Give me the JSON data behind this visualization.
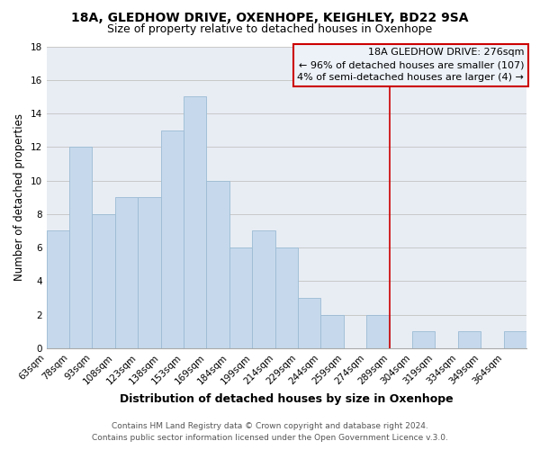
{
  "title": "18A, GLEDHOW DRIVE, OXENHOPE, KEIGHLEY, BD22 9SA",
  "subtitle": "Size of property relative to detached houses in Oxenhope",
  "xlabel": "Distribution of detached houses by size in Oxenhope",
  "ylabel": "Number of detached properties",
  "footer_line1": "Contains HM Land Registry data © Crown copyright and database right 2024.",
  "footer_line2": "Contains public sector information licensed under the Open Government Licence v.3.0.",
  "bin_labels": [
    "63sqm",
    "78sqm",
    "93sqm",
    "108sqm",
    "123sqm",
    "138sqm",
    "153sqm",
    "169sqm",
    "184sqm",
    "199sqm",
    "214sqm",
    "229sqm",
    "244sqm",
    "259sqm",
    "274sqm",
    "289sqm",
    "304sqm",
    "319sqm",
    "334sqm",
    "349sqm",
    "364sqm"
  ],
  "bar_values": [
    7,
    12,
    8,
    9,
    9,
    13,
    15,
    10,
    6,
    7,
    6,
    3,
    2,
    0,
    2,
    0,
    1,
    0,
    1,
    0,
    1
  ],
  "bar_color": "#c6d9ec",
  "bar_edge_color": "#9bbbd4",
  "grid_color": "#c8c8c8",
  "background_color": "#e8edf4",
  "ylim": [
    0,
    18
  ],
  "yticks": [
    0,
    2,
    4,
    6,
    8,
    10,
    12,
    14,
    16,
    18
  ],
  "property_label": "18A GLEDHOW DRIVE: 276sqm",
  "annotation_line1": "← 96% of detached houses are smaller (107)",
  "annotation_line2": "4% of semi-detached houses are larger (4) →",
  "vline_x": 14.5,
  "vline_color": "#cc0000",
  "legend_box_color": "#cc0000",
  "legend_bg": "#edf2f8",
  "title_fontsize": 10,
  "subtitle_fontsize": 9,
  "xlabel_fontsize": 9,
  "ylabel_fontsize": 8.5,
  "tick_fontsize": 7.5,
  "legend_fontsize": 8,
  "footer_fontsize": 6.5
}
